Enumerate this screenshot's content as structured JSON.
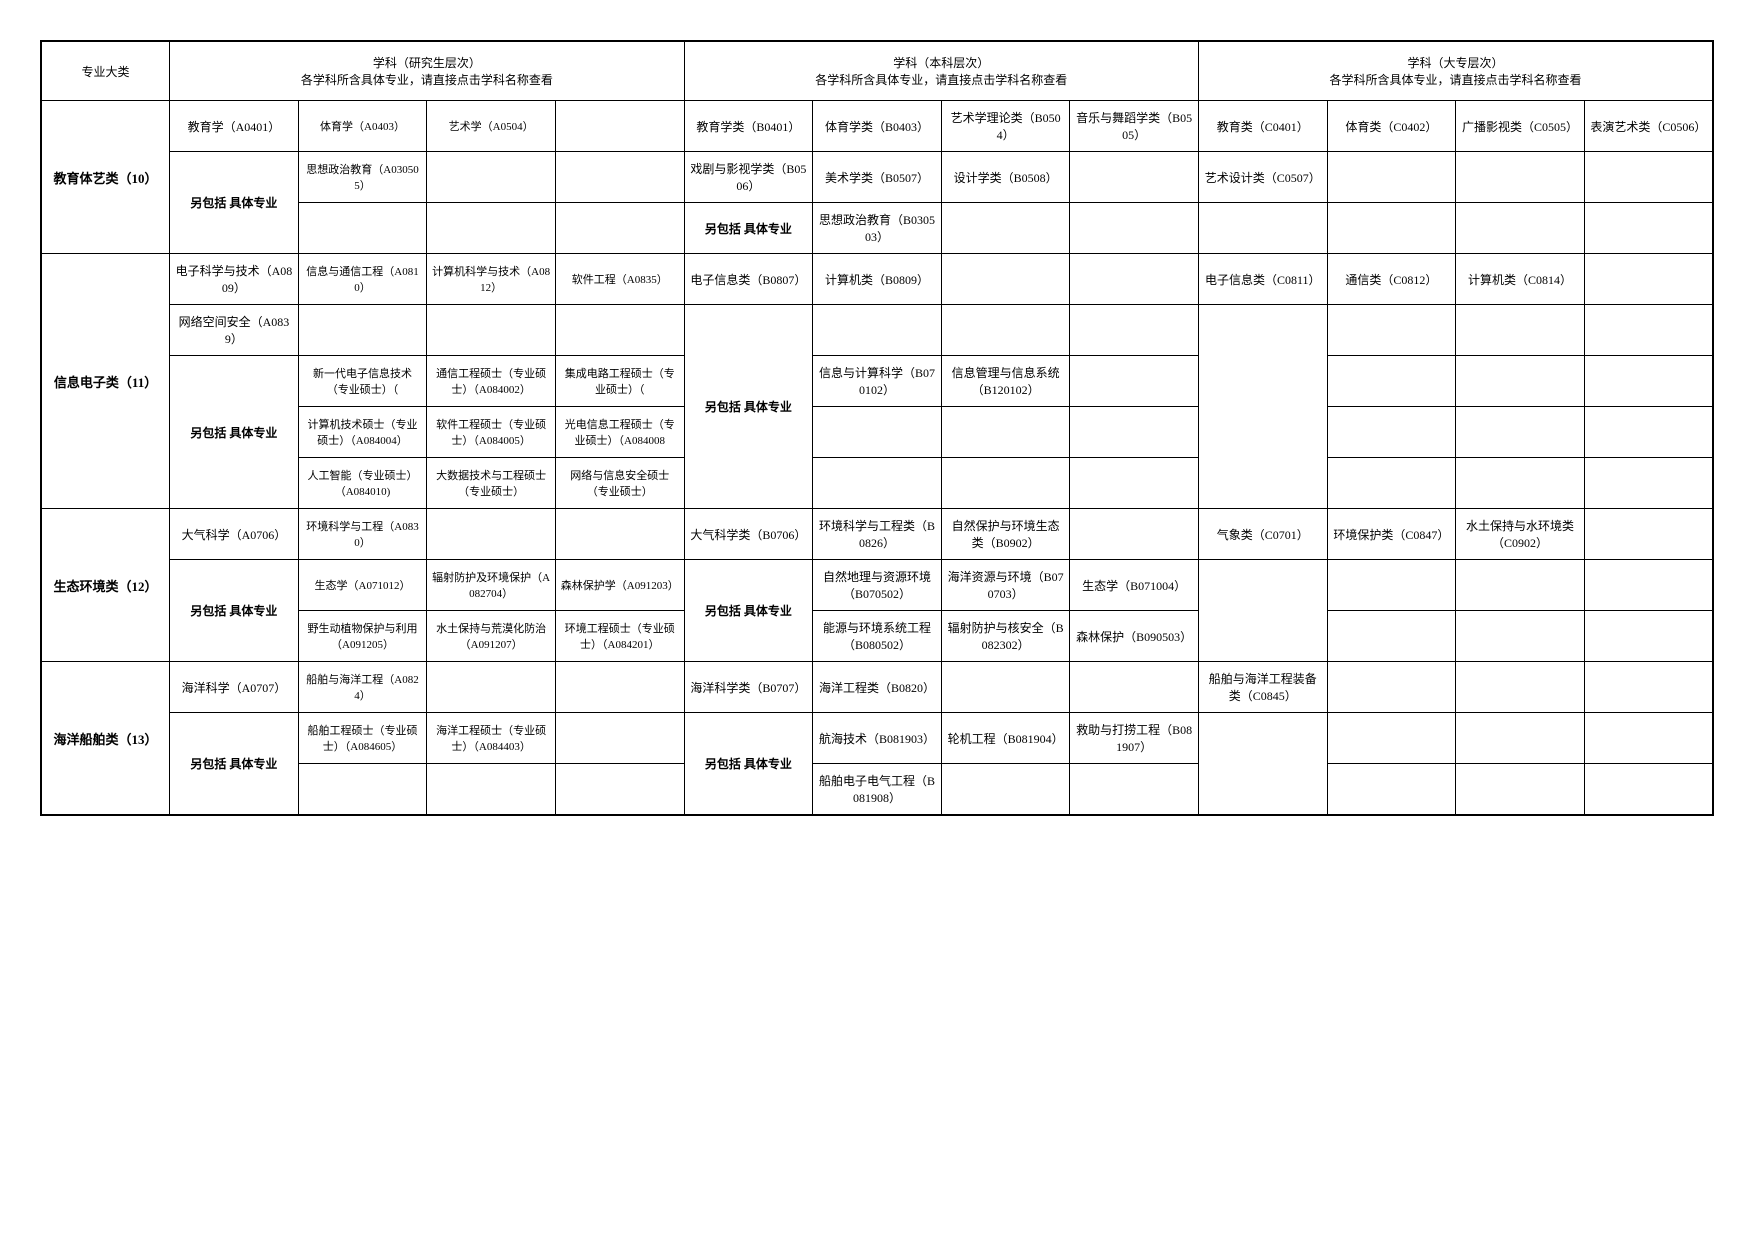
{
  "headers": {
    "col0": "专业大类",
    "group_g": {
      "title": "学科（研究生层次）",
      "sub": "各学科所含具体专业，请直接点击学科名称查看"
    },
    "group_b": {
      "title": "学科（本科层次）",
      "sub": "各学科所含具体专业，请直接点击学科名称查看"
    },
    "group_c": {
      "title": "学科（大专层次）",
      "sub": "各学科所含具体专业，请直接点击学科名称查看"
    }
  },
  "also": "另包括\n具体专业",
  "sections": [
    {
      "name": "教育体艺类（10）",
      "g": [
        [
          "教育学（A0401）",
          "体育学（A0403）",
          "艺术学（A0504）",
          ""
        ],
        [
          "",
          "思想政治教育（A030505）",
          "",
          ""
        ],
        [
          "",
          "",
          "",
          ""
        ]
      ],
      "b": [
        [
          "教育学类（B0401）",
          "体育学类（B0403）",
          "艺术学理论类（B0504）",
          "音乐与舞蹈学类（B0505）"
        ],
        [
          "戏剧与影视学类（B0506）",
          "美术学类（B0507）",
          "设计学类（B0508）",
          ""
        ],
        [
          "",
          "思想政治教育（B030503）",
          "",
          ""
        ]
      ],
      "c": [
        [
          "教育类（C0401）",
          "体育类（C0402）",
          "广播影视类（C0505）",
          "表演艺术类（C0506）"
        ],
        [
          "艺术设计类（C0507）",
          "",
          "",
          ""
        ],
        [
          "",
          "",
          "",
          ""
        ]
      ]
    },
    {
      "name": "信息电子类（11）",
      "g": [
        [
          "电子科学与技术（A0809）",
          "信息与通信工程（A0810）",
          "计算机科学与技术（A0812）",
          "软件工程（A0835）"
        ],
        [
          "网络空间安全（A0839）",
          "",
          "",
          ""
        ],
        [
          "",
          "新一代电子信息技术（专业硕士）（",
          "通信工程硕士（专业硕士）（A084002）",
          "集成电路工程硕士（专业硕士）（"
        ],
        [
          "",
          "计算机技术硕士（专业硕士）（A084004）",
          "软件工程硕士（专业硕士）（A084005）",
          "光电信息工程硕士（专业硕士）（A084008"
        ],
        [
          "",
          "人工智能（专业硕士）（A084010)",
          "大数据技术与工程硕士（专业硕士）",
          "网络与信息安全硕士（专业硕士）"
        ]
      ],
      "b": [
        [
          "电子信息类（B0807）",
          "计算机类（B0809）",
          "",
          ""
        ],
        [
          "",
          "",
          "",
          ""
        ],
        [
          "",
          "信息与计算科学（B070102）",
          "信息管理与信息系统（B120102）",
          ""
        ],
        [
          "",
          "",
          "",
          ""
        ],
        [
          "",
          "",
          "",
          ""
        ]
      ],
      "c": [
        [
          "电子信息类（C0811）",
          "通信类（C0812）",
          "计算机类（C0814）",
          ""
        ],
        [
          "",
          "",
          "",
          ""
        ],
        [
          "",
          "",
          "",
          ""
        ],
        [
          "",
          "",
          "",
          ""
        ],
        [
          "",
          "",
          "",
          ""
        ]
      ]
    },
    {
      "name": "生态环境类（12）",
      "g": [
        [
          "大气科学（A0706）",
          "环境科学与工程（A0830）",
          "",
          ""
        ],
        [
          "",
          "生态学（A071012）",
          "辐射防护及环境保护（A082704）",
          "森林保护学（A091203）"
        ],
        [
          "",
          "野生动植物保护与利用（A091205）",
          "水土保持与荒漠化防治（A091207）",
          "环境工程硕士（专业硕士）（A084201）"
        ]
      ],
      "b": [
        [
          "大气科学类（B0706）",
          "环境科学与工程类（B0826）",
          "自然保护与环境生态类（B0902）",
          ""
        ],
        [
          "",
          "自然地理与资源环境（B070502）",
          "海洋资源与环境（B070703）",
          "生态学（B071004）"
        ],
        [
          "",
          "能源与环境系统工程（B080502）",
          "辐射防护与核安全（B082302）",
          "森林保护（B090503）"
        ]
      ],
      "c": [
        [
          "气象类（C0701）",
          "环境保护类（C0847）",
          "水土保持与水环境类（C0902）",
          ""
        ],
        [
          "",
          "",
          "",
          ""
        ],
        [
          "",
          "",
          "",
          ""
        ]
      ]
    },
    {
      "name": "海洋船舶类（13）",
      "g": [
        [
          "海洋科学（A0707）",
          "船舶与海洋工程（A0824）",
          "",
          ""
        ],
        [
          "",
          "船舶工程硕士（专业硕士）（A084605）",
          "海洋工程硕士（专业硕士）（A084403）",
          ""
        ],
        [
          "",
          "",
          "",
          ""
        ]
      ],
      "b": [
        [
          "海洋科学类（B0707）",
          "海洋工程类（B0820）",
          "",
          ""
        ],
        [
          "",
          "航海技术（B081903）",
          "轮机工程（B081904）",
          "救助与打捞工程（B081907）"
        ],
        [
          "",
          "船舶电子电气工程（B081908）",
          "",
          ""
        ]
      ],
      "c": [
        [
          "船舶与海洋工程装备类（C0845）",
          "",
          "",
          ""
        ],
        [
          "",
          "",
          "",
          ""
        ],
        [
          "",
          "",
          "",
          ""
        ]
      ]
    }
  ]
}
